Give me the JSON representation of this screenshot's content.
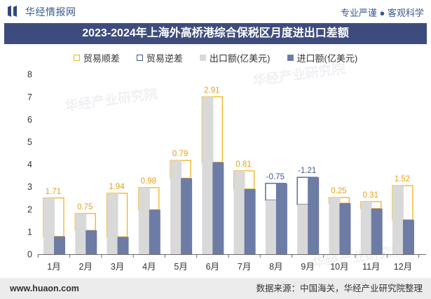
{
  "header": {
    "logo_text": "华经情报网",
    "slogan": "专业严谨 ● 客观科学",
    "logo_icon": "bar-logo-icon"
  },
  "watermark": "华经产业研究院",
  "chart_data": {
    "type": "bar",
    "title": "2023-2024年上海外高桥港综合保税区月度进出口差额",
    "xlabel": "",
    "ylabel": "",
    "categories": [
      "1月",
      "2月",
      "3月",
      "4月",
      "5月",
      "6月",
      "7月",
      "8月",
      "9月",
      "10月",
      "11月",
      "12月"
    ],
    "series": [
      {
        "name": "出口额(亿美元)",
        "values": [
          2.5,
          1.81,
          2.71,
          2.96,
          4.17,
          7.0,
          3.71,
          2.4,
          2.21,
          2.52,
          2.34,
          3.05
        ]
      },
      {
        "name": "进口额(亿美元)",
        "values": [
          0.79,
          1.06,
          0.77,
          1.98,
          3.38,
          4.09,
          2.9,
          3.15,
          3.42,
          2.27,
          2.03,
          1.53
        ]
      }
    ],
    "balance": {
      "surplus_name": "贸易顺差",
      "deficit_name": "贸易逆差",
      "values": [
        1.71,
        0.75,
        1.94,
        0.98,
        0.79,
        2.91,
        0.81,
        -0.75,
        -1.21,
        0.25,
        0.31,
        1.52
      ]
    },
    "ylim": [
      0,
      8
    ],
    "yticks": [
      0,
      1,
      2,
      3,
      4,
      5,
      6,
      7,
      8
    ],
    "grid": false,
    "legend_position": "top",
    "colors": {
      "surplus": "#f2b21c",
      "surplus_label": "#e3a21a",
      "deficit": "#3f5a8f",
      "export": "#d9d9d9",
      "import": "#6d7ca5",
      "title_bar": "#3e4c7d"
    }
  },
  "footer": {
    "website": "www.huaon.com",
    "source": "数据来源：中国海关，华经产业研究院整理"
  }
}
